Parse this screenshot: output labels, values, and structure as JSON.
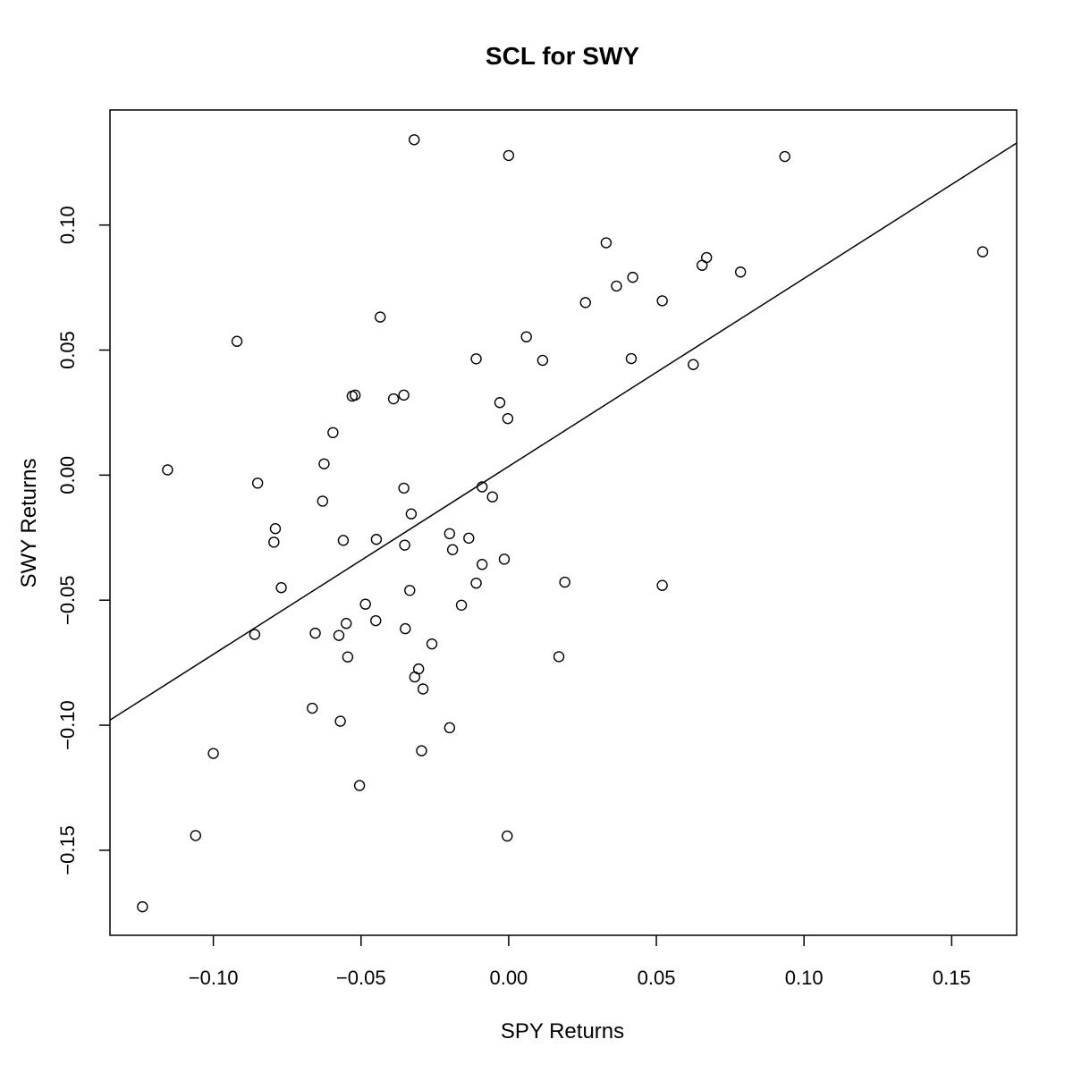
{
  "chart_data": {
    "type": "scatter",
    "title": "SCL for SWY",
    "xlabel": "SPY Returns",
    "ylabel": "SWY Returns",
    "xlim": [
      -0.135,
      0.172
    ],
    "ylim": [
      -0.184,
      0.146
    ],
    "x_ticks": [
      -0.1,
      -0.05,
      0.0,
      0.05,
      0.1,
      0.15
    ],
    "x_tick_labels": [
      "−0.10",
      "−0.05",
      "0.00",
      "0.05",
      "0.10",
      "0.15"
    ],
    "y_ticks": [
      -0.15,
      -0.1,
      -0.05,
      0.0,
      0.05,
      0.1
    ],
    "y_tick_labels": [
      "−0.15",
      "−0.10",
      "−0.05",
      "0.00",
      "0.05",
      "0.10"
    ],
    "grid": false,
    "marker": "open-circle",
    "regression_line": {
      "intercept": 0.0035,
      "slope": 0.7515
    },
    "points": [
      [
        -0.124,
        -0.1726
      ],
      [
        -0.1155,
        0.0021
      ],
      [
        -0.106,
        -0.1441
      ],
      [
        -0.1,
        -0.1113
      ],
      [
        -0.092,
        0.0535
      ],
      [
        -0.086,
        -0.0637
      ],
      [
        -0.085,
        -0.0032
      ],
      [
        -0.079,
        -0.0214
      ],
      [
        -0.0795,
        -0.0268
      ],
      [
        -0.077,
        -0.045
      ],
      [
        -0.0665,
        -0.0932
      ],
      [
        -0.0655,
        -0.0632
      ],
      [
        -0.063,
        -0.0104
      ],
      [
        -0.0625,
        0.0045
      ],
      [
        -0.0595,
        0.017
      ],
      [
        -0.0575,
        -0.0641
      ],
      [
        -0.057,
        -0.0984
      ],
      [
        -0.056,
        -0.0261
      ],
      [
        -0.055,
        -0.0593
      ],
      [
        -0.0545,
        -0.0727
      ],
      [
        -0.053,
        0.0316
      ],
      [
        -0.052,
        0.032
      ],
      [
        -0.0505,
        -0.1241
      ],
      [
        -0.0485,
        -0.0516
      ],
      [
        -0.045,
        -0.0582
      ],
      [
        -0.0448,
        -0.0257
      ],
      [
        -0.0435,
        0.0632
      ],
      [
        -0.039,
        0.0305
      ],
      [
        -0.0355,
        0.032
      ],
      [
        -0.0355,
        -0.0052
      ],
      [
        -0.0352,
        -0.028
      ],
      [
        -0.035,
        -0.0614
      ],
      [
        -0.0335,
        -0.0461
      ],
      [
        -0.033,
        -0.0155
      ],
      [
        -0.032,
        0.1341
      ],
      [
        -0.0318,
        -0.0807
      ],
      [
        -0.0305,
        -0.0775
      ],
      [
        -0.0295,
        -0.1102
      ],
      [
        -0.029,
        -0.0855
      ],
      [
        -0.026,
        -0.0675
      ],
      [
        -0.02,
        -0.101
      ],
      [
        -0.02,
        -0.0234
      ],
      [
        -0.019,
        -0.0298
      ],
      [
        -0.016,
        -0.052
      ],
      [
        -0.0135,
        -0.0252
      ],
      [
        -0.011,
        -0.0432
      ],
      [
        -0.011,
        0.0465
      ],
      [
        -0.009,
        -0.0357
      ],
      [
        -0.009,
        -0.0047
      ],
      [
        -0.0055,
        -0.0087
      ],
      [
        -0.003,
        0.029
      ],
      [
        -0.0015,
        -0.0336
      ],
      [
        -0.0005,
        -0.1443
      ],
      [
        -0.0003,
        0.0226
      ],
      [
        0.0,
        0.1278
      ],
      [
        0.006,
        0.0553
      ],
      [
        0.0115,
        0.0459
      ],
      [
        0.017,
        -0.0726
      ],
      [
        0.019,
        -0.0428
      ],
      [
        0.026,
        0.069
      ],
      [
        0.033,
        0.0929
      ],
      [
        0.0365,
        0.0756
      ],
      [
        0.0415,
        0.0466
      ],
      [
        0.042,
        0.0791
      ],
      [
        0.052,
        0.0697
      ],
      [
        0.052,
        -0.0441
      ],
      [
        0.0625,
        0.0442
      ],
      [
        0.0655,
        0.0839
      ],
      [
        0.067,
        0.087
      ],
      [
        0.0785,
        0.0812
      ],
      [
        0.0935,
        0.1274
      ],
      [
        0.1605,
        0.0893
      ]
    ]
  }
}
